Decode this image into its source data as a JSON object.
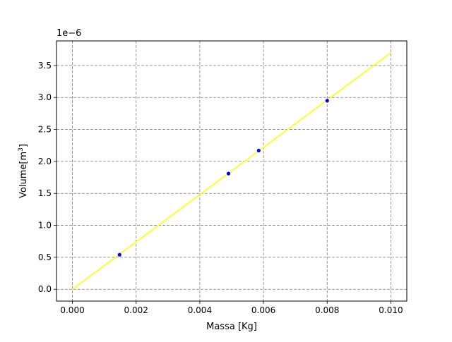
{
  "chart_data": {
    "type": "scatter",
    "xlabel": "Massa [Kg]",
    "ylabel_main": "Volume[m",
    "ylabel_exponent": "3",
    "ylabel_close": "]",
    "y_offset_text": "1e−6",
    "x_ticks": [
      0.0,
      0.002,
      0.004,
      0.006,
      0.008,
      0.01
    ],
    "x_tick_labels": [
      "0.000",
      "0.002",
      "0.004",
      "0.006",
      "0.008",
      "0.010"
    ],
    "y_ticks": [
      0.0,
      0.5,
      1.0,
      1.5,
      2.0,
      2.5,
      3.0,
      3.5
    ],
    "y_tick_labels": [
      "0.0",
      "0.5",
      "1.0",
      "1.5",
      "2.0",
      "2.5",
      "3.0",
      "3.5"
    ],
    "xlim": [
      -0.0005,
      0.0105
    ],
    "ylim": [
      -0.185,
      3.885
    ],
    "y_scale_note": "y values in units of 1e-6 m^3",
    "grid": true,
    "series": [
      {
        "kind": "points",
        "color": "#0000ff",
        "x": [
          0.00148,
          0.0049,
          0.00585,
          0.008
        ],
        "y": [
          0.54,
          1.81,
          2.17,
          2.95
        ]
      },
      {
        "kind": "fit-line",
        "color": "#ffff00",
        "x": [
          0.0,
          0.01
        ],
        "y": [
          0.0,
          3.7
        ]
      }
    ]
  }
}
